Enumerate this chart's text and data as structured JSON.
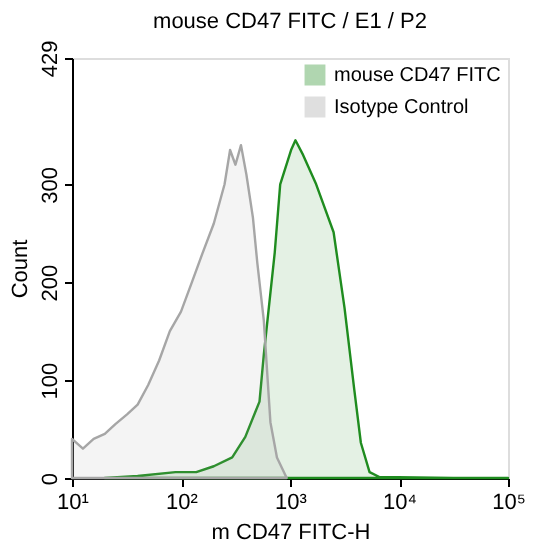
{
  "chart_data": {
    "type": "area",
    "title": "mouse CD47 FITC / E1 / P2",
    "xlabel": "m CD47 FITC-H",
    "ylabel": "Count",
    "log": "x",
    "xlim": [
      10,
      100000
    ],
    "ylim": [
      0,
      429
    ],
    "xticks": [
      {
        "value": 10,
        "label": "10¹"
      },
      {
        "value": 100,
        "label": "10²"
      },
      {
        "value": 1000,
        "label": "10³"
      },
      {
        "value": 10000,
        "label": "10⁴"
      },
      {
        "value": 100000,
        "label": "10⁵"
      }
    ],
    "yticks": [
      0,
      100,
      200,
      300,
      429
    ],
    "grid": false,
    "legend": "top right",
    "series": [
      {
        "name": "mouse CD47 FITC",
        "color": "#1f8c1f",
        "x": [
          20,
          40,
          89,
          138,
          200,
          295,
          389,
          525,
          575,
          724,
          813,
          1023,
          1122,
          1318,
          1738,
          2512,
          3162,
          3890,
          4467,
          5370,
          6607,
          31623,
          100000
        ],
        "values": [
          0,
          2,
          6,
          6,
          12,
          21,
          42,
          78,
          126,
          230,
          300,
          335,
          345,
          330,
          300,
          251,
          174,
          90,
          36,
          6,
          1,
          0,
          0
        ]
      },
      {
        "name": "Isotype Control",
        "color": "#a6a6a6",
        "x": [
          10,
          12.6,
          15.8,
          20,
          25,
          32,
          40,
          50,
          63,
          79,
          100,
          126,
          158,
          200,
          251,
          282,
          316,
          355,
          398,
          457,
          501,
          575,
          661,
          759,
          933
        ],
        "values": [
          40,
          30,
          40,
          45,
          55,
          65,
          75,
          95,
          120,
          150,
          170,
          200,
          230,
          260,
          300,
          335,
          320,
          340,
          310,
          266,
          220,
          161,
          57,
          21,
          0
        ]
      }
    ]
  }
}
